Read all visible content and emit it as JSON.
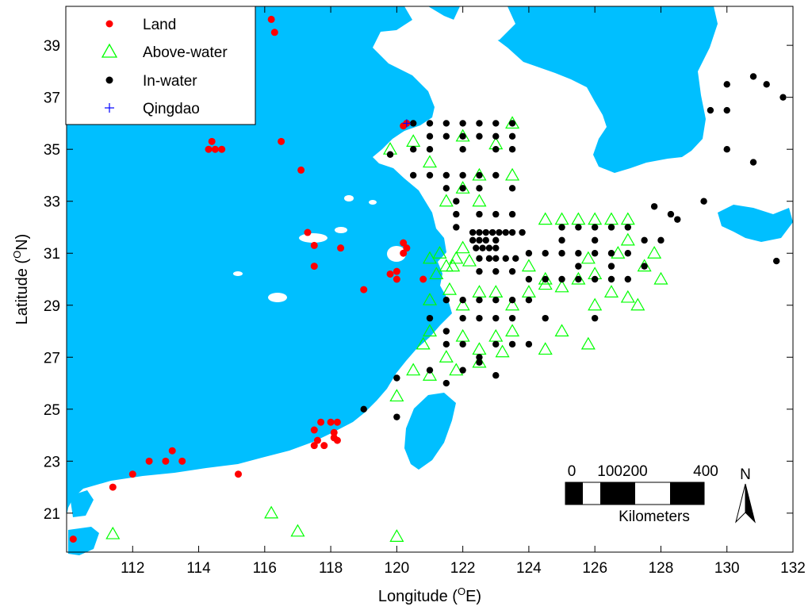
{
  "colors": {
    "land": "#00bfff",
    "land_points": "#ff0000",
    "above_water": "#00ff00",
    "in_water": "#000000",
    "qingdao": "#0000ff"
  },
  "axes": {
    "xlabel": "Longitude (",
    "xlabel_sup": "O",
    "xlabel_end": "E)",
    "ylabel": "Latitude (",
    "ylabel_sup": "O",
    "ylabel_end": "N)",
    "xlim": [
      110,
      132
    ],
    "ylim": [
      19.5,
      40.5
    ],
    "xticks": [
      112,
      114,
      116,
      118,
      120,
      122,
      124,
      126,
      128,
      130,
      132
    ],
    "yticks": [
      21,
      23,
      25,
      27,
      29,
      31,
      33,
      35,
      37,
      39
    ]
  },
  "legend": {
    "items": [
      {
        "label": "Land",
        "marker": "circle-red"
      },
      {
        "label": "Above-water",
        "marker": "triangle-green"
      },
      {
        "label": "In-water",
        "marker": "circle-black"
      },
      {
        "label": "Qingdao",
        "marker": "plus-blue"
      }
    ]
  },
  "scalebar": {
    "ticks": [
      "0",
      "100200",
      "400"
    ],
    "unit": "Kilometers",
    "north": "N"
  },
  "chart_data": {
    "type": "scatter",
    "series": [
      {
        "name": "Land",
        "points": [
          [
            110.2,
            20.0
          ],
          [
            111.4,
            22.0
          ],
          [
            112.0,
            22.5
          ],
          [
            112.5,
            23.0
          ],
          [
            113.0,
            23.0
          ],
          [
            113.2,
            23.4
          ],
          [
            113.5,
            23.0
          ],
          [
            115.2,
            22.5
          ],
          [
            116.2,
            40.0
          ],
          [
            116.3,
            39.5
          ],
          [
            114.4,
            35.3
          ],
          [
            114.5,
            35.0
          ],
          [
            114.7,
            35.0
          ],
          [
            114.3,
            35.0
          ],
          [
            116.5,
            35.3
          ],
          [
            117.1,
            34.2
          ],
          [
            117.3,
            31.8
          ],
          [
            117.5,
            31.3
          ],
          [
            117.5,
            30.5
          ],
          [
            118.3,
            31.2
          ],
          [
            119.0,
            29.6
          ],
          [
            119.8,
            30.2
          ],
          [
            120.0,
            30.0
          ],
          [
            120.0,
            30.3
          ],
          [
            120.2,
            31.4
          ],
          [
            120.3,
            31.2
          ],
          [
            120.2,
            31.0
          ],
          [
            120.8,
            30.0
          ],
          [
            120.3,
            36.0
          ],
          [
            120.2,
            35.9
          ],
          [
            117.5,
            24.2
          ],
          [
            117.7,
            24.5
          ],
          [
            118.0,
            24.5
          ],
          [
            118.1,
            24.1
          ],
          [
            117.6,
            23.8
          ],
          [
            117.5,
            23.6
          ],
          [
            117.8,
            23.6
          ],
          [
            118.1,
            23.9
          ],
          [
            118.2,
            24.5
          ],
          [
            118.2,
            23.8
          ]
        ]
      },
      {
        "name": "Above-water",
        "points": [
          [
            111.4,
            20.2
          ],
          [
            116.2,
            21.0
          ],
          [
            117.0,
            20.3
          ],
          [
            120.0,
            20.1
          ],
          [
            120.0,
            25.5
          ],
          [
            119.8,
            35.0
          ],
          [
            120.5,
            35.3
          ],
          [
            121.0,
            34.5
          ],
          [
            122.0,
            35.5
          ],
          [
            123.0,
            35.2
          ],
          [
            123.5,
            36.0
          ],
          [
            122.5,
            34.0
          ],
          [
            123.5,
            34.0
          ],
          [
            121.0,
            30.8
          ],
          [
            121.3,
            31.0
          ],
          [
            121.5,
            30.5
          ],
          [
            121.8,
            30.8
          ],
          [
            121.2,
            30.2
          ],
          [
            121.7,
            30.5
          ],
          [
            122.0,
            31.2
          ],
          [
            122.2,
            30.7
          ],
          [
            121.6,
            29.6
          ],
          [
            121.0,
            29.2
          ],
          [
            122.0,
            29.0
          ],
          [
            122.5,
            29.5
          ],
          [
            123.0,
            29.5
          ],
          [
            123.5,
            29.0
          ],
          [
            124.0,
            29.5
          ],
          [
            124.5,
            29.8
          ],
          [
            121.0,
            28.0
          ],
          [
            120.8,
            27.5
          ],
          [
            121.5,
            27.0
          ],
          [
            122.0,
            27.8
          ],
          [
            122.5,
            27.3
          ],
          [
            123.0,
            27.8
          ],
          [
            123.5,
            28.0
          ],
          [
            120.5,
            26.5
          ],
          [
            121.0,
            26.3
          ],
          [
            121.8,
            26.5
          ],
          [
            122.5,
            26.8
          ],
          [
            123.2,
            27.2
          ],
          [
            124.5,
            27.3
          ],
          [
            125.0,
            28.0
          ],
          [
            125.8,
            27.5
          ],
          [
            126.0,
            29.0
          ],
          [
            125.0,
            29.7
          ],
          [
            126.5,
            29.5
          ],
          [
            127.0,
            29.3
          ],
          [
            127.5,
            30.5
          ],
          [
            126.7,
            31.0
          ],
          [
            127.8,
            31.0
          ],
          [
            127.0,
            31.5
          ],
          [
            125.8,
            30.8
          ],
          [
            124.5,
            32.3
          ],
          [
            125.0,
            32.3
          ],
          [
            125.5,
            32.3
          ],
          [
            126.0,
            32.3
          ],
          [
            126.5,
            32.3
          ],
          [
            127.0,
            32.3
          ],
          [
            124.0,
            30.5
          ],
          [
            124.5,
            30.0
          ],
          [
            125.5,
            30.0
          ],
          [
            126.0,
            30.2
          ],
          [
            127.3,
            29.0
          ],
          [
            128.0,
            30.0
          ],
          [
            121.5,
            33.0
          ],
          [
            122.0,
            33.5
          ],
          [
            122.5,
            33.0
          ]
        ]
      },
      {
        "name": "In-water",
        "points": [
          [
            120.5,
            36.0
          ],
          [
            121.0,
            36.0
          ],
          [
            121.5,
            36.0
          ],
          [
            122.0,
            36.0
          ],
          [
            122.5,
            36.0
          ],
          [
            123.0,
            36.0
          ],
          [
            123.5,
            36.0
          ],
          [
            121.0,
            35.5
          ],
          [
            121.5,
            35.5
          ],
          [
            122.0,
            35.5
          ],
          [
            122.5,
            35.5
          ],
          [
            123.0,
            35.5
          ],
          [
            123.5,
            35.5
          ],
          [
            119.8,
            34.8
          ],
          [
            120.5,
            35.0
          ],
          [
            121.0,
            35.0
          ],
          [
            122.0,
            35.0
          ],
          [
            123.0,
            35.0
          ],
          [
            123.5,
            35.0
          ],
          [
            120.5,
            34.0
          ],
          [
            121.0,
            34.0
          ],
          [
            121.5,
            34.0
          ],
          [
            122.0,
            34.0
          ],
          [
            122.5,
            34.0
          ],
          [
            123.0,
            34.0
          ],
          [
            121.5,
            33.5
          ],
          [
            122.0,
            33.5
          ],
          [
            122.5,
            33.5
          ],
          [
            123.5,
            33.5
          ],
          [
            121.8,
            33.0
          ],
          [
            121.8,
            32.5
          ],
          [
            121.8,
            32.0
          ],
          [
            122.5,
            32.5
          ],
          [
            123.0,
            32.5
          ],
          [
            123.5,
            32.5
          ],
          [
            122.3,
            31.8
          ],
          [
            122.5,
            31.8
          ],
          [
            122.7,
            31.8
          ],
          [
            122.9,
            31.8
          ],
          [
            123.1,
            31.8
          ],
          [
            123.3,
            31.8
          ],
          [
            123.5,
            31.8
          ],
          [
            123.8,
            31.8
          ],
          [
            122.3,
            31.5
          ],
          [
            122.5,
            31.5
          ],
          [
            122.7,
            31.5
          ],
          [
            123.0,
            31.5
          ],
          [
            122.4,
            31.2
          ],
          [
            122.6,
            31.2
          ],
          [
            122.8,
            31.2
          ],
          [
            123.0,
            31.2
          ],
          [
            122.5,
            30.8
          ],
          [
            122.8,
            30.8
          ],
          [
            123.0,
            30.8
          ],
          [
            123.3,
            30.8
          ],
          [
            123.6,
            30.8
          ],
          [
            122.5,
            30.3
          ],
          [
            123.0,
            30.3
          ],
          [
            123.5,
            30.3
          ],
          [
            124.0,
            31.0
          ],
          [
            124.5,
            31.0
          ],
          [
            125.0,
            31.0
          ],
          [
            125.5,
            31.0
          ],
          [
            126.0,
            31.0
          ],
          [
            126.5,
            31.0
          ],
          [
            127.0,
            31.0
          ],
          [
            124.0,
            30.0
          ],
          [
            124.5,
            30.0
          ],
          [
            125.0,
            30.0
          ],
          [
            125.5,
            30.0
          ],
          [
            126.0,
            30.0
          ],
          [
            126.5,
            30.0
          ],
          [
            127.0,
            30.0
          ],
          [
            125.0,
            32.0
          ],
          [
            125.5,
            32.0
          ],
          [
            126.0,
            32.0
          ],
          [
            126.5,
            32.0
          ],
          [
            127.0,
            32.0
          ],
          [
            125.0,
            31.5
          ],
          [
            126.0,
            31.5
          ],
          [
            127.5,
            31.5
          ],
          [
            125.5,
            30.5
          ],
          [
            126.5,
            30.5
          ],
          [
            127.5,
            30.5
          ],
          [
            128.0,
            31.5
          ],
          [
            121.5,
            29.2
          ],
          [
            122.0,
            29.2
          ],
          [
            122.5,
            29.2
          ],
          [
            123.0,
            29.2
          ],
          [
            123.5,
            29.2
          ],
          [
            124.0,
            29.2
          ],
          [
            121.0,
            28.5
          ],
          [
            121.5,
            28.0
          ],
          [
            122.0,
            28.5
          ],
          [
            122.5,
            28.5
          ],
          [
            123.0,
            28.5
          ],
          [
            123.5,
            28.5
          ],
          [
            124.5,
            28.5
          ],
          [
            126.0,
            28.5
          ],
          [
            121.5,
            27.5
          ],
          [
            122.0,
            27.5
          ],
          [
            122.5,
            27.0
          ],
          [
            123.0,
            27.5
          ],
          [
            123.5,
            27.5
          ],
          [
            124.0,
            27.5
          ],
          [
            121.0,
            26.5
          ],
          [
            121.5,
            26.0
          ],
          [
            122.0,
            26.5
          ],
          [
            122.5,
            26.8
          ],
          [
            123.0,
            26.3
          ],
          [
            120.0,
            26.2
          ],
          [
            119.0,
            25.0
          ],
          [
            120.0,
            24.7
          ],
          [
            127.8,
            32.8
          ],
          [
            128.3,
            32.5
          ],
          [
            128.5,
            32.3
          ],
          [
            129.3,
            33.0
          ],
          [
            129.5,
            36.5
          ],
          [
            130.0,
            36.5
          ],
          [
            130.0,
            37.5
          ],
          [
            130.8,
            37.8
          ],
          [
            131.2,
            37.5
          ],
          [
            131.7,
            37.0
          ],
          [
            130.0,
            35.0
          ],
          [
            130.8,
            34.5
          ],
          [
            131.5,
            30.7
          ]
        ]
      },
      {
        "name": "Qingdao",
        "points": [
          [
            120.3,
            36.0
          ]
        ]
      }
    ]
  }
}
